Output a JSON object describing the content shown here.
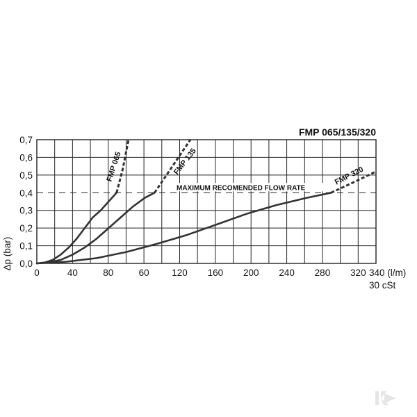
{
  "chart_data": {
    "type": "line",
    "title": "FMP 065/135/320",
    "ylabel": "Δp (bar)",
    "x_ticks": [
      "0",
      "40",
      "80",
      "60",
      "120",
      "160",
      "200",
      "240",
      "280",
      "320",
      "340 (l/m)"
    ],
    "x_subtitle": "30 cSt",
    "y_ticks": [
      "0,0",
      "0,1",
      "0,2",
      "0,3",
      "0,4",
      "0,5",
      "0,6",
      "0,7"
    ],
    "ylim": [
      0,
      0.7
    ],
    "grid": true,
    "threshold": {
      "value": 0.4,
      "label": "MAXIMUM RECOMENDED FLOW RATE"
    },
    "series": [
      {
        "name": "FMP 065",
        "solid": [
          [
            0,
            0
          ],
          [
            8,
            0.005
          ],
          [
            16,
            0.02
          ],
          [
            24,
            0.05
          ],
          [
            32,
            0.09
          ],
          [
            40,
            0.14
          ],
          [
            48,
            0.2
          ],
          [
            56,
            0.26
          ],
          [
            64,
            0.3
          ],
          [
            72,
            0.35
          ],
          [
            80,
            0.4
          ]
        ],
        "dashed": [
          [
            80,
            0.4
          ],
          [
            86,
            0.53
          ],
          [
            92,
            0.7
          ]
        ]
      },
      {
        "name": "FMP 135",
        "solid": [
          [
            0,
            0
          ],
          [
            12,
            0.005
          ],
          [
            24,
            0.02
          ],
          [
            36,
            0.05
          ],
          [
            48,
            0.09
          ],
          [
            60,
            0.14
          ],
          [
            72,
            0.2
          ],
          [
            84,
            0.26
          ],
          [
            96,
            0.32
          ],
          [
            108,
            0.37
          ],
          [
            118,
            0.4
          ]
        ],
        "dashed": [
          [
            118,
            0.4
          ],
          [
            136,
            0.55
          ],
          [
            154,
            0.7
          ]
        ]
      },
      {
        "name": "FMP 320",
        "solid": [
          [
            0,
            0
          ],
          [
            30,
            0.01
          ],
          [
            60,
            0.03
          ],
          [
            90,
            0.065
          ],
          [
            120,
            0.11
          ],
          [
            150,
            0.16
          ],
          [
            180,
            0.22
          ],
          [
            210,
            0.28
          ],
          [
            240,
            0.33
          ],
          [
            270,
            0.37
          ],
          [
            295,
            0.4
          ]
        ],
        "dashed": [
          [
            295,
            0.4
          ],
          [
            318,
            0.46
          ],
          [
            340,
            0.52
          ]
        ]
      }
    ]
  }
}
